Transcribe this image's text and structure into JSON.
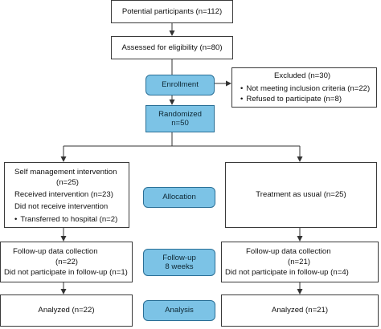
{
  "potential": "Potential participants (n=112)",
  "assessed": "Assessed for eligibility (n=80)",
  "stages": {
    "enrollment": "Enrollment",
    "allocation": "Allocation",
    "followup_line1": "Follow-up",
    "followup_line2": "8 weeks",
    "analysis": "Analysis"
  },
  "excluded": {
    "title": "Excluded (n=30)",
    "item1": "Not meeting inclusion criteria (n=22)",
    "item2": "Refused to participate (n=8)"
  },
  "randomized": {
    "line1": "Randomized",
    "line2": "n=50"
  },
  "left_alloc": {
    "line1": "Self management intervention",
    "line2": "(n=25)",
    "line3": "Received intervention (n=23)",
    "line4": "Did not receive intervention",
    "line5": "Transferred to hospital (n=2)"
  },
  "right_alloc": "Treatment as usual (n=25)",
  "left_follow": {
    "line1": "Follow-up data collection",
    "line2": "(n=22)",
    "line3": "Did not participate in follow-up (n=1)"
  },
  "right_follow": {
    "line1": "Follow-up data collection",
    "line2": "(n=21)",
    "line3": "Did not participate in follow-up (n=4)"
  },
  "left_analyzed": "Analyzed (n=22)",
  "right_analyzed": "Analyzed (n=21)"
}
